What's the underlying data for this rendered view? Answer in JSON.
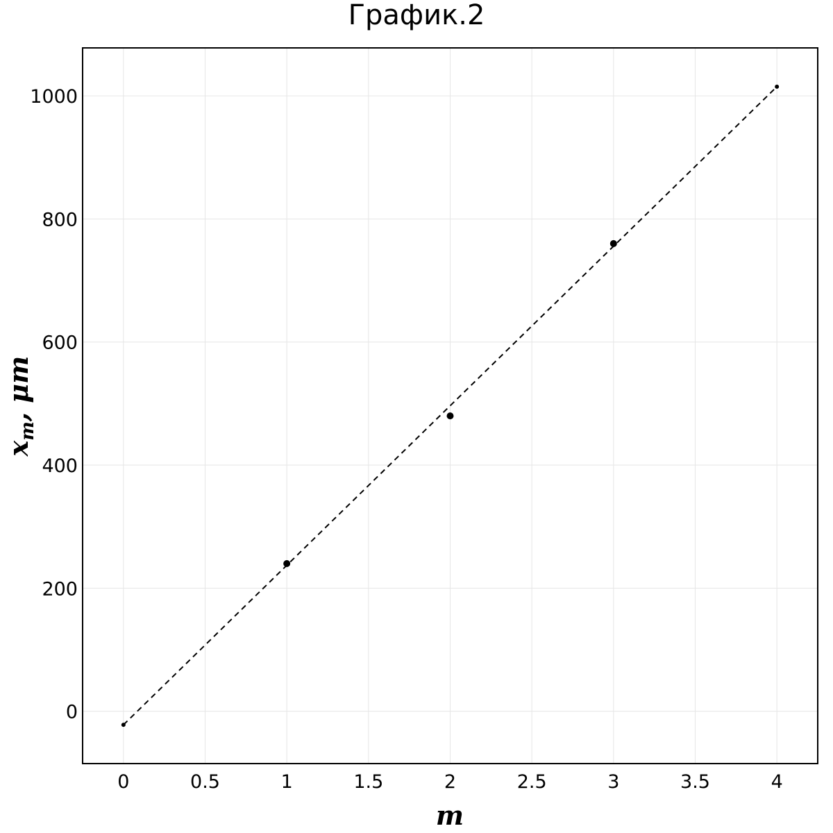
{
  "chart_data": {
    "type": "scatter",
    "title": "График.2",
    "xlabel": {
      "base": "m"
    },
    "ylabel": {
      "base": "x",
      "subscript": "m",
      "suffix": ", μm"
    },
    "xlim": [
      -0.25,
      4.25
    ],
    "ylim": [
      -85,
      1078
    ],
    "x_ticks": [
      0,
      0.5,
      1,
      1.5,
      2,
      2.5,
      3,
      3.5,
      4
    ],
    "x_tick_labels": [
      "0",
      "0.5",
      "1",
      "1.5",
      "2",
      "2.5",
      "3",
      "3.5",
      "4"
    ],
    "y_ticks": [
      0,
      200,
      400,
      600,
      800,
      1000
    ],
    "y_tick_labels": [
      "0",
      "200",
      "400",
      "600",
      "800",
      "1000"
    ],
    "grid": true,
    "series": [
      {
        "kind": "points",
        "x": [
          1,
          2,
          3
        ],
        "y": [
          240,
          480,
          760
        ]
      },
      {
        "kind": "dashed-fit",
        "x": [
          0,
          4
        ],
        "y": [
          -22,
          1015
        ]
      }
    ]
  }
}
